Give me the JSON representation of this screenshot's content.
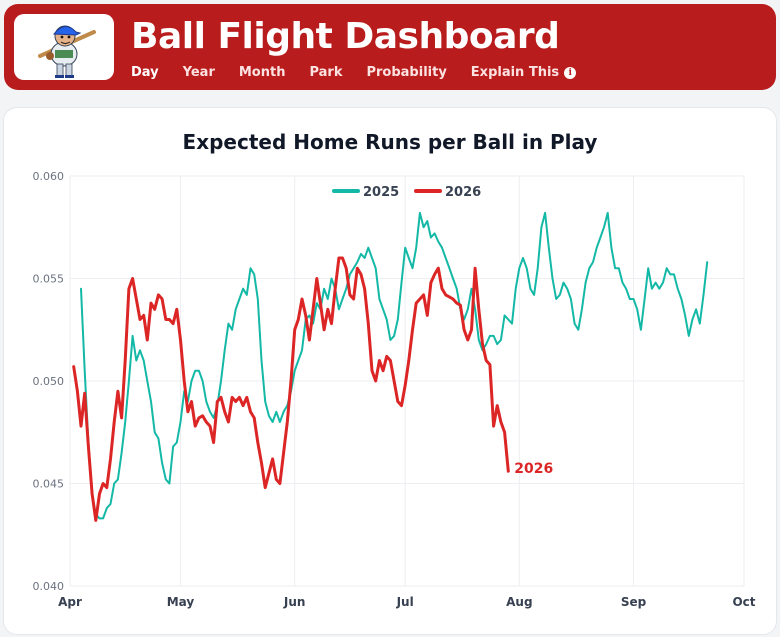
{
  "header": {
    "title": "Ball Flight Dashboard",
    "nav": [
      {
        "label": "Day",
        "active": true
      },
      {
        "label": "Year",
        "active": false
      },
      {
        "label": "Month",
        "active": false
      },
      {
        "label": "Park",
        "active": false
      },
      {
        "label": "Probability",
        "active": false
      },
      {
        "label": "Explain This",
        "active": false,
        "icon": "info-icon"
      }
    ],
    "logo_icon": "ballplayer-mascot-icon"
  },
  "colors": {
    "header": "#b91c1c",
    "series_2025": "#14b8a6",
    "series_2026": "#dc2626"
  },
  "chart_data": {
    "type": "line",
    "title": "Expected Home Runs per Ball in Play",
    "xlabel": "",
    "ylabel": "",
    "x_ticks": [
      "Apr",
      "May",
      "Jun",
      "Jul",
      "Aug",
      "Sep",
      "Oct"
    ],
    "y_ticks": [
      "0.040",
      "0.045",
      "0.050",
      "0.055",
      "0.060"
    ],
    "ylim": [
      0.04,
      0.06
    ],
    "grid": true,
    "legend_position": "top",
    "end_label": "2026",
    "series": [
      {
        "name": "2025",
        "color": "#14b8a6",
        "points": [
          [
            3,
            0.0545
          ],
          [
            4,
            0.0505
          ],
          [
            5,
            0.047
          ],
          [
            6,
            0.0445
          ],
          [
            7,
            0.0435
          ],
          [
            8,
            0.0433
          ],
          [
            9,
            0.0433
          ],
          [
            10,
            0.0438
          ],
          [
            11,
            0.044
          ],
          [
            12,
            0.045
          ],
          [
            13,
            0.0452
          ],
          [
            14,
            0.0465
          ],
          [
            15,
            0.048
          ],
          [
            16,
            0.05
          ],
          [
            17,
            0.0522
          ],
          [
            18,
            0.051
          ],
          [
            19,
            0.0515
          ],
          [
            20,
            0.051
          ],
          [
            21,
            0.05
          ],
          [
            22,
            0.049
          ],
          [
            23,
            0.0475
          ],
          [
            24,
            0.0472
          ],
          [
            25,
            0.046
          ],
          [
            26,
            0.0452
          ],
          [
            27,
            0.045
          ],
          [
            28,
            0.0468
          ],
          [
            29,
            0.047
          ],
          [
            30,
            0.048
          ],
          [
            31,
            0.0495
          ],
          [
            32,
            0.049
          ],
          [
            33,
            0.05
          ],
          [
            34,
            0.0505
          ],
          [
            35,
            0.0505
          ],
          [
            36,
            0.05
          ],
          [
            37,
            0.049
          ],
          [
            38,
            0.0485
          ],
          [
            39,
            0.0482
          ],
          [
            40,
            0.0488
          ],
          [
            41,
            0.05
          ],
          [
            42,
            0.0515
          ],
          [
            43,
            0.0528
          ],
          [
            44,
            0.0525
          ],
          [
            45,
            0.0535
          ],
          [
            46,
            0.054
          ],
          [
            47,
            0.0545
          ],
          [
            48,
            0.0542
          ],
          [
            49,
            0.0555
          ],
          [
            50,
            0.0552
          ],
          [
            51,
            0.054
          ],
          [
            52,
            0.051
          ],
          [
            53,
            0.049
          ],
          [
            54,
            0.0483
          ],
          [
            55,
            0.048
          ],
          [
            56,
            0.0485
          ],
          [
            57,
            0.048
          ],
          [
            58,
            0.0485
          ],
          [
            59,
            0.0488
          ],
          [
            60,
            0.0495
          ],
          [
            61,
            0.0505
          ],
          [
            62,
            0.051
          ],
          [
            63,
            0.0515
          ],
          [
            64,
            0.053
          ],
          [
            65,
            0.0532
          ],
          [
            66,
            0.0528
          ],
          [
            67,
            0.0538
          ],
          [
            68,
            0.0535
          ],
          [
            69,
            0.0545
          ],
          [
            70,
            0.054
          ],
          [
            71,
            0.055
          ],
          [
            72,
            0.0545
          ],
          [
            73,
            0.0535
          ],
          [
            74,
            0.054
          ],
          [
            75,
            0.0545
          ],
          [
            76,
            0.0552
          ],
          [
            77,
            0.0555
          ],
          [
            78,
            0.0558
          ],
          [
            79,
            0.0562
          ],
          [
            80,
            0.056
          ],
          [
            81,
            0.0565
          ],
          [
            82,
            0.056
          ],
          [
            83,
            0.0555
          ],
          [
            84,
            0.054
          ],
          [
            85,
            0.0535
          ],
          [
            86,
            0.053
          ],
          [
            87,
            0.052
          ],
          [
            88,
            0.0522
          ],
          [
            89,
            0.053
          ],
          [
            90,
            0.0548
          ],
          [
            91,
            0.0565
          ],
          [
            92,
            0.056
          ],
          [
            93,
            0.0555
          ],
          [
            94,
            0.0565
          ],
          [
            95,
            0.0582
          ],
          [
            96,
            0.0575
          ],
          [
            97,
            0.0578
          ],
          [
            98,
            0.057
          ],
          [
            99,
            0.0572
          ],
          [
            100,
            0.0568
          ],
          [
            101,
            0.0565
          ],
          [
            102,
            0.056
          ],
          [
            103,
            0.0555
          ],
          [
            104,
            0.055
          ],
          [
            105,
            0.0545
          ],
          [
            106,
            0.0535
          ],
          [
            107,
            0.053
          ],
          [
            108,
            0.0535
          ],
          [
            109,
            0.0545
          ],
          [
            110,
            0.0535
          ],
          [
            111,
            0.052
          ],
          [
            112,
            0.0515
          ],
          [
            113,
            0.0518
          ],
          [
            114,
            0.0522
          ],
          [
            115,
            0.0522
          ],
          [
            116,
            0.0518
          ],
          [
            117,
            0.052
          ],
          [
            118,
            0.0532
          ],
          [
            119,
            0.053
          ],
          [
            120,
            0.0528
          ],
          [
            121,
            0.0545
          ],
          [
            122,
            0.0555
          ],
          [
            123,
            0.056
          ],
          [
            124,
            0.0555
          ],
          [
            125,
            0.0545
          ],
          [
            126,
            0.0542
          ],
          [
            127,
            0.0555
          ],
          [
            128,
            0.0575
          ],
          [
            129,
            0.0582
          ],
          [
            130,
            0.0565
          ],
          [
            131,
            0.055
          ],
          [
            132,
            0.054
          ],
          [
            133,
            0.0542
          ],
          [
            134,
            0.0548
          ],
          [
            135,
            0.0545
          ],
          [
            136,
            0.054
          ],
          [
            137,
            0.0528
          ],
          [
            138,
            0.0525
          ],
          [
            139,
            0.0535
          ],
          [
            140,
            0.0548
          ],
          [
            141,
            0.0555
          ],
          [
            142,
            0.0558
          ],
          [
            143,
            0.0565
          ],
          [
            144,
            0.057
          ],
          [
            145,
            0.0575
          ],
          [
            146,
            0.0582
          ],
          [
            147,
            0.0565
          ],
          [
            148,
            0.0555
          ],
          [
            149,
            0.0555
          ],
          [
            150,
            0.0548
          ],
          [
            151,
            0.0545
          ],
          [
            152,
            0.054
          ],
          [
            153,
            0.054
          ],
          [
            154,
            0.0535
          ],
          [
            155,
            0.0525
          ],
          [
            156,
            0.054
          ],
          [
            157,
            0.0555
          ],
          [
            158,
            0.0545
          ],
          [
            159,
            0.0548
          ],
          [
            160,
            0.0545
          ],
          [
            161,
            0.0548
          ],
          [
            162,
            0.0555
          ],
          [
            163,
            0.0552
          ],
          [
            164,
            0.0552
          ],
          [
            165,
            0.0545
          ],
          [
            166,
            0.054
          ],
          [
            167,
            0.0532
          ],
          [
            168,
            0.0522
          ],
          [
            169,
            0.053
          ],
          [
            170,
            0.0535
          ],
          [
            171,
            0.0528
          ],
          [
            172,
            0.0542
          ],
          [
            173,
            0.0558
          ]
        ]
      },
      {
        "name": "2026",
        "color": "#dc2626",
        "points": [
          [
            1,
            0.0507
          ],
          [
            2,
            0.0495
          ],
          [
            3,
            0.0478
          ],
          [
            4,
            0.0494
          ],
          [
            5,
            0.0468
          ],
          [
            6,
            0.0445
          ],
          [
            7,
            0.0432
          ],
          [
            8,
            0.0445
          ],
          [
            9,
            0.045
          ],
          [
            10,
            0.0448
          ],
          [
            11,
            0.0462
          ],
          [
            12,
            0.048
          ],
          [
            13,
            0.0495
          ],
          [
            14,
            0.0482
          ],
          [
            15,
            0.051
          ],
          [
            16,
            0.0545
          ],
          [
            17,
            0.055
          ],
          [
            18,
            0.054
          ],
          [
            19,
            0.053
          ],
          [
            20,
            0.0532
          ],
          [
            21,
            0.052
          ],
          [
            22,
            0.0538
          ],
          [
            23,
            0.0535
          ],
          [
            24,
            0.0542
          ],
          [
            25,
            0.054
          ],
          [
            26,
            0.053
          ],
          [
            27,
            0.053
          ],
          [
            28,
            0.0528
          ],
          [
            29,
            0.0535
          ],
          [
            30,
            0.052
          ],
          [
            31,
            0.05
          ],
          [
            32,
            0.0485
          ],
          [
            33,
            0.049
          ],
          [
            34,
            0.0478
          ],
          [
            35,
            0.0482
          ],
          [
            36,
            0.0483
          ],
          [
            37,
            0.048
          ],
          [
            38,
            0.0478
          ],
          [
            39,
            0.047
          ],
          [
            40,
            0.049
          ],
          [
            41,
            0.0492
          ],
          [
            42,
            0.0485
          ],
          [
            43,
            0.048
          ],
          [
            44,
            0.0492
          ],
          [
            45,
            0.049
          ],
          [
            46,
            0.0492
          ],
          [
            47,
            0.0488
          ],
          [
            48,
            0.0492
          ],
          [
            49,
            0.0485
          ],
          [
            50,
            0.0482
          ],
          [
            51,
            0.047
          ],
          [
            52,
            0.046
          ],
          [
            53,
            0.0448
          ],
          [
            54,
            0.0455
          ],
          [
            55,
            0.0462
          ],
          [
            56,
            0.0452
          ],
          [
            57,
            0.045
          ],
          [
            58,
            0.0465
          ],
          [
            59,
            0.048
          ],
          [
            60,
            0.05
          ],
          [
            61,
            0.0525
          ],
          [
            62,
            0.053
          ],
          [
            63,
            0.054
          ],
          [
            64,
            0.0532
          ],
          [
            65,
            0.052
          ],
          [
            66,
            0.0535
          ],
          [
            67,
            0.055
          ],
          [
            68,
            0.0538
          ],
          [
            69,
            0.0525
          ],
          [
            70,
            0.0535
          ],
          [
            71,
            0.0528
          ],
          [
            72,
            0.0545
          ],
          [
            73,
            0.056
          ],
          [
            74,
            0.056
          ],
          [
            75,
            0.0555
          ],
          [
            76,
            0.0542
          ],
          [
            77,
            0.054
          ],
          [
            78,
            0.0555
          ],
          [
            79,
            0.0552
          ],
          [
            80,
            0.0545
          ],
          [
            81,
            0.0528
          ],
          [
            82,
            0.0505
          ],
          [
            83,
            0.05
          ],
          [
            84,
            0.051
          ],
          [
            85,
            0.0505
          ],
          [
            86,
            0.0512
          ],
          [
            87,
            0.051
          ],
          [
            88,
            0.05
          ],
          [
            89,
            0.049
          ],
          [
            90,
            0.0488
          ],
          [
            91,
            0.0498
          ],
          [
            92,
            0.051
          ],
          [
            93,
            0.0525
          ],
          [
            94,
            0.0538
          ],
          [
            95,
            0.054
          ],
          [
            96,
            0.0542
          ],
          [
            97,
            0.0532
          ],
          [
            98,
            0.0548
          ],
          [
            99,
            0.0552
          ],
          [
            100,
            0.0555
          ],
          [
            101,
            0.0545
          ],
          [
            102,
            0.0542
          ],
          [
            103,
            0.0541
          ],
          [
            104,
            0.054
          ],
          [
            105,
            0.0538
          ],
          [
            106,
            0.0537
          ],
          [
            107,
            0.0525
          ],
          [
            108,
            0.052
          ],
          [
            109,
            0.0525
          ],
          [
            110,
            0.0555
          ],
          [
            111,
            0.0535
          ],
          [
            112,
            0.0518
          ],
          [
            113,
            0.051
          ],
          [
            114,
            0.0508
          ],
          [
            115,
            0.0478
          ],
          [
            116,
            0.0488
          ],
          [
            117,
            0.048
          ],
          [
            118,
            0.0475
          ],
          [
            119,
            0.0456
          ]
        ]
      }
    ]
  }
}
